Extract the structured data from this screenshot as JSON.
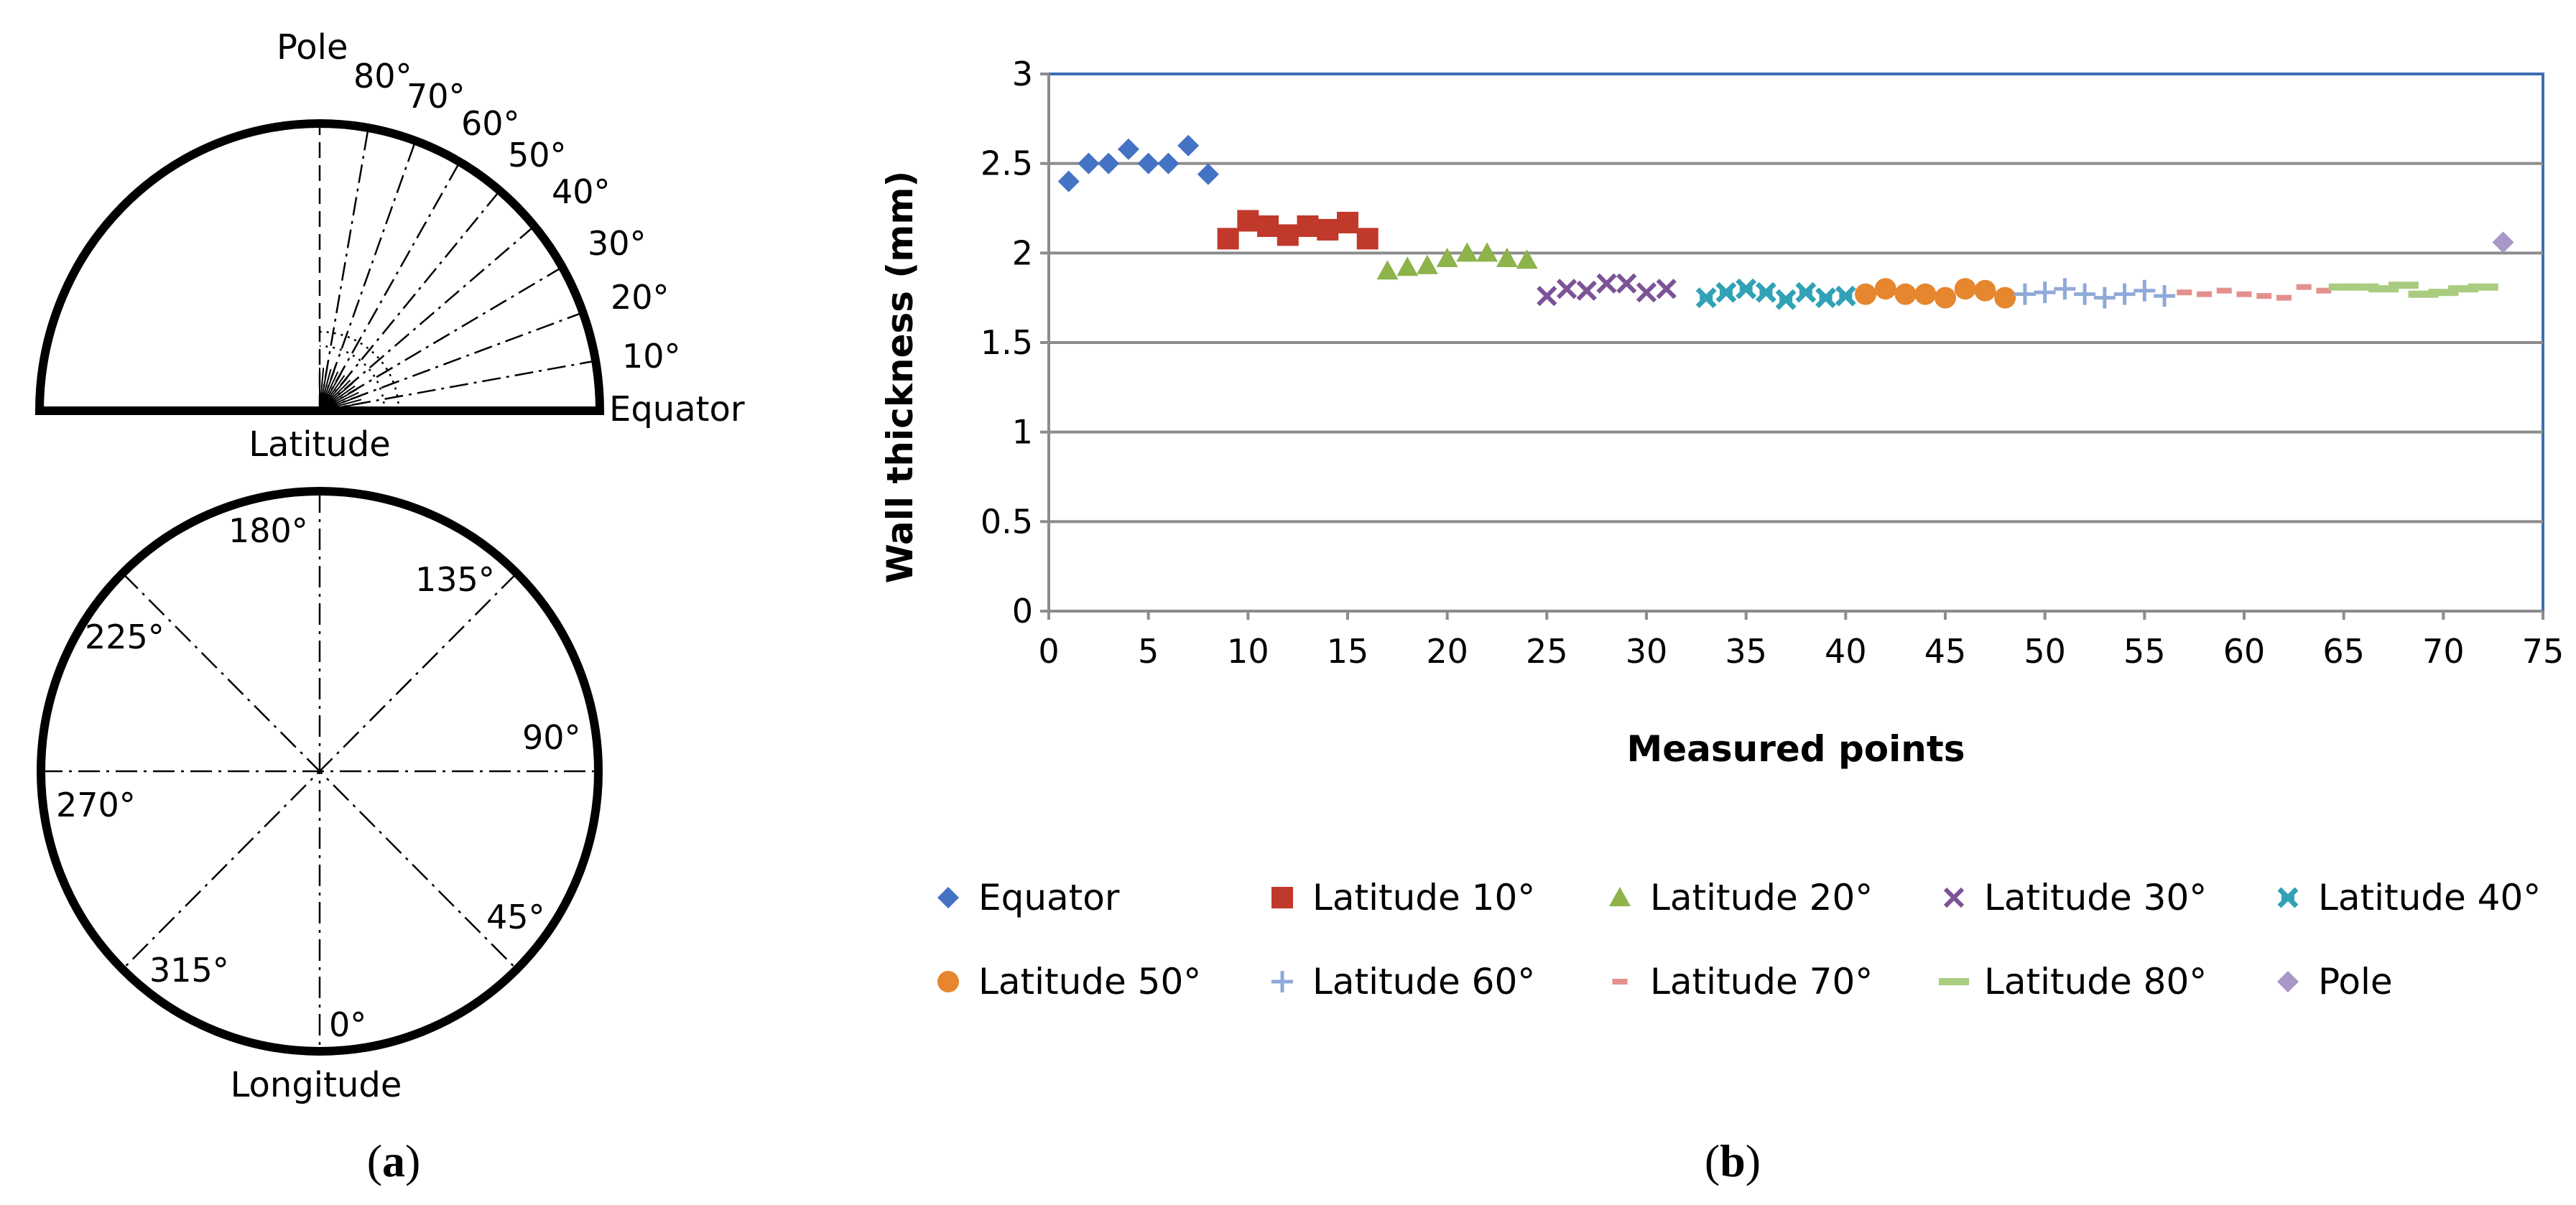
{
  "panel_a": {
    "semicircle": {
      "pole_label": "Pole",
      "equator_label": "Equator",
      "caption": "Latitude",
      "angle_labels": [
        "10°",
        "20°",
        "30°",
        "40°",
        "50°",
        "60°",
        "70°",
        "80°"
      ]
    },
    "circle": {
      "caption": "Longitude",
      "angle_labels": [
        "0°",
        "45°",
        "90°",
        "135°",
        "180°",
        "225°",
        "270°",
        "315°"
      ]
    },
    "label_paren_open": "(",
    "label_letter": "a",
    "label_paren_close": ")"
  },
  "panel_b": {
    "label_paren_open": "(",
    "label_letter": "b",
    "label_paren_close": ")"
  },
  "chart_data": {
    "type": "scatter",
    "title": "",
    "xlabel": "Measured points",
    "ylabel": "Wall thickness (mm)",
    "xlim": [
      0,
      75
    ],
    "ylim": [
      0,
      3
    ],
    "xticks": [
      0,
      5,
      10,
      15,
      20,
      25,
      30,
      35,
      40,
      45,
      50,
      55,
      60,
      65,
      70,
      75
    ],
    "yticks": [
      0,
      0.5,
      1,
      1.5,
      2,
      2.5,
      3
    ],
    "ytick_labels": [
      "0",
      "0.5",
      "1",
      "1.5",
      "2",
      "2.5",
      "3"
    ],
    "grid": "horizontal",
    "legend_position": "bottom",
    "series": [
      {
        "name": "Equator",
        "marker": "diamond",
        "color": "#4472C4",
        "x": [
          1,
          2,
          3,
          4,
          5,
          6,
          7,
          8
        ],
        "y": [
          2.4,
          2.5,
          2.5,
          2.58,
          2.5,
          2.5,
          2.6,
          2.44
        ]
      },
      {
        "name": "Latitude 10°",
        "marker": "square",
        "color": "#C0392B",
        "x": [
          9,
          10,
          11,
          12,
          13,
          14,
          15,
          16
        ],
        "y": [
          2.08,
          2.18,
          2.15,
          2.1,
          2.15,
          2.13,
          2.17,
          2.08
        ]
      },
      {
        "name": "Latitude 20°",
        "marker": "triangle",
        "color": "#8DB34A",
        "x": [
          17,
          18,
          19,
          20,
          21,
          22,
          23,
          24
        ],
        "y": [
          1.9,
          1.92,
          1.93,
          1.97,
          2.0,
          2.0,
          1.97,
          1.96
        ]
      },
      {
        "name": "Latitude 30°",
        "marker": "x",
        "color": "#7B5396",
        "x": [
          25,
          26,
          27,
          28,
          29,
          30,
          31
        ],
        "y": [
          1.76,
          1.8,
          1.79,
          1.83,
          1.83,
          1.78,
          1.8
        ]
      },
      {
        "name": "Latitude 40°",
        "marker": "asterisk",
        "color": "#31A2B6",
        "x": [
          33,
          34,
          35,
          36,
          37,
          38,
          39,
          40
        ],
        "y": [
          1.75,
          1.78,
          1.8,
          1.78,
          1.74,
          1.78,
          1.75,
          1.76
        ]
      },
      {
        "name": "Latitude 50°",
        "marker": "circle",
        "color": "#E6862F",
        "x": [
          41,
          42,
          43,
          44,
          45,
          46,
          47,
          48
        ],
        "y": [
          1.77,
          1.8,
          1.77,
          1.77,
          1.75,
          1.8,
          1.79,
          1.75
        ]
      },
      {
        "name": "Latitude 60°",
        "marker": "plus",
        "color": "#8FA9D8",
        "x": [
          49,
          50,
          51,
          52,
          53,
          54,
          55,
          56
        ],
        "y": [
          1.77,
          1.78,
          1.8,
          1.77,
          1.75,
          1.77,
          1.79,
          1.76
        ]
      },
      {
        "name": "Latitude 70°",
        "marker": "dash",
        "color": "#E3908E",
        "x": [
          57,
          58,
          59,
          60,
          61,
          62,
          63,
          64
        ],
        "y": [
          1.78,
          1.77,
          1.79,
          1.77,
          1.76,
          1.75,
          1.81,
          1.79
        ]
      },
      {
        "name": "Latitude 80°",
        "marker": "longdash",
        "color": "#A9CC7F",
        "x": [
          65,
          66,
          67,
          68,
          69,
          70,
          71,
          72
        ],
        "y": [
          1.81,
          1.81,
          1.8,
          1.82,
          1.77,
          1.78,
          1.8,
          1.81
        ]
      },
      {
        "name": "Pole",
        "marker": "diamond",
        "color": "#A897C7",
        "x": [
          73
        ],
        "y": [
          2.06
        ]
      }
    ]
  }
}
